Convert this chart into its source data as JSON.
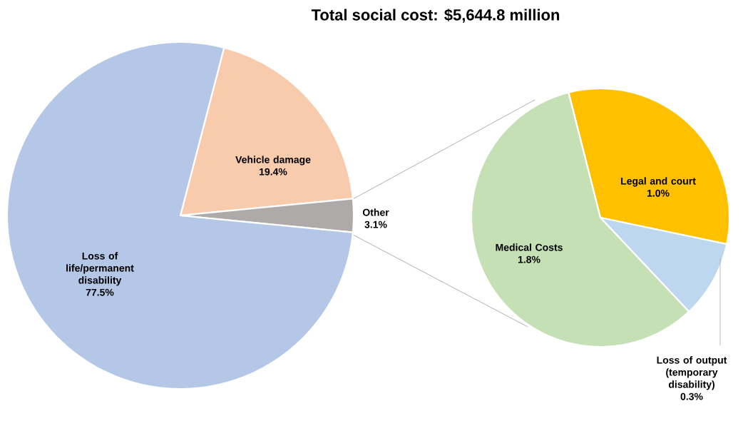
{
  "chart_data": [
    {
      "type": "pie",
      "title": "Total social cost: $5,644.8 million",
      "categories": [
        "Vehicle damage",
        "Other",
        "Loss of life/permanent disability"
      ],
      "values": [
        19.4,
        3.1,
        77.5
      ],
      "value_labels": [
        "19.4%",
        "3.1%",
        "77.5%"
      ],
      "colors": [
        "#f8cbad",
        "#aeaaaa",
        "#b4c7e7"
      ]
    },
    {
      "type": "pie",
      "categories": [
        "Legal and court",
        "Loss of output (temporary disability)",
        "Medical Costs"
      ],
      "values": [
        1.0,
        0.3,
        1.8
      ],
      "value_labels": [
        "1.0%",
        "0.3%",
        "1.8%"
      ],
      "colors": [
        "#ffc000",
        "#bdd7ee",
        "#c5e0b4"
      ]
    }
  ]
}
